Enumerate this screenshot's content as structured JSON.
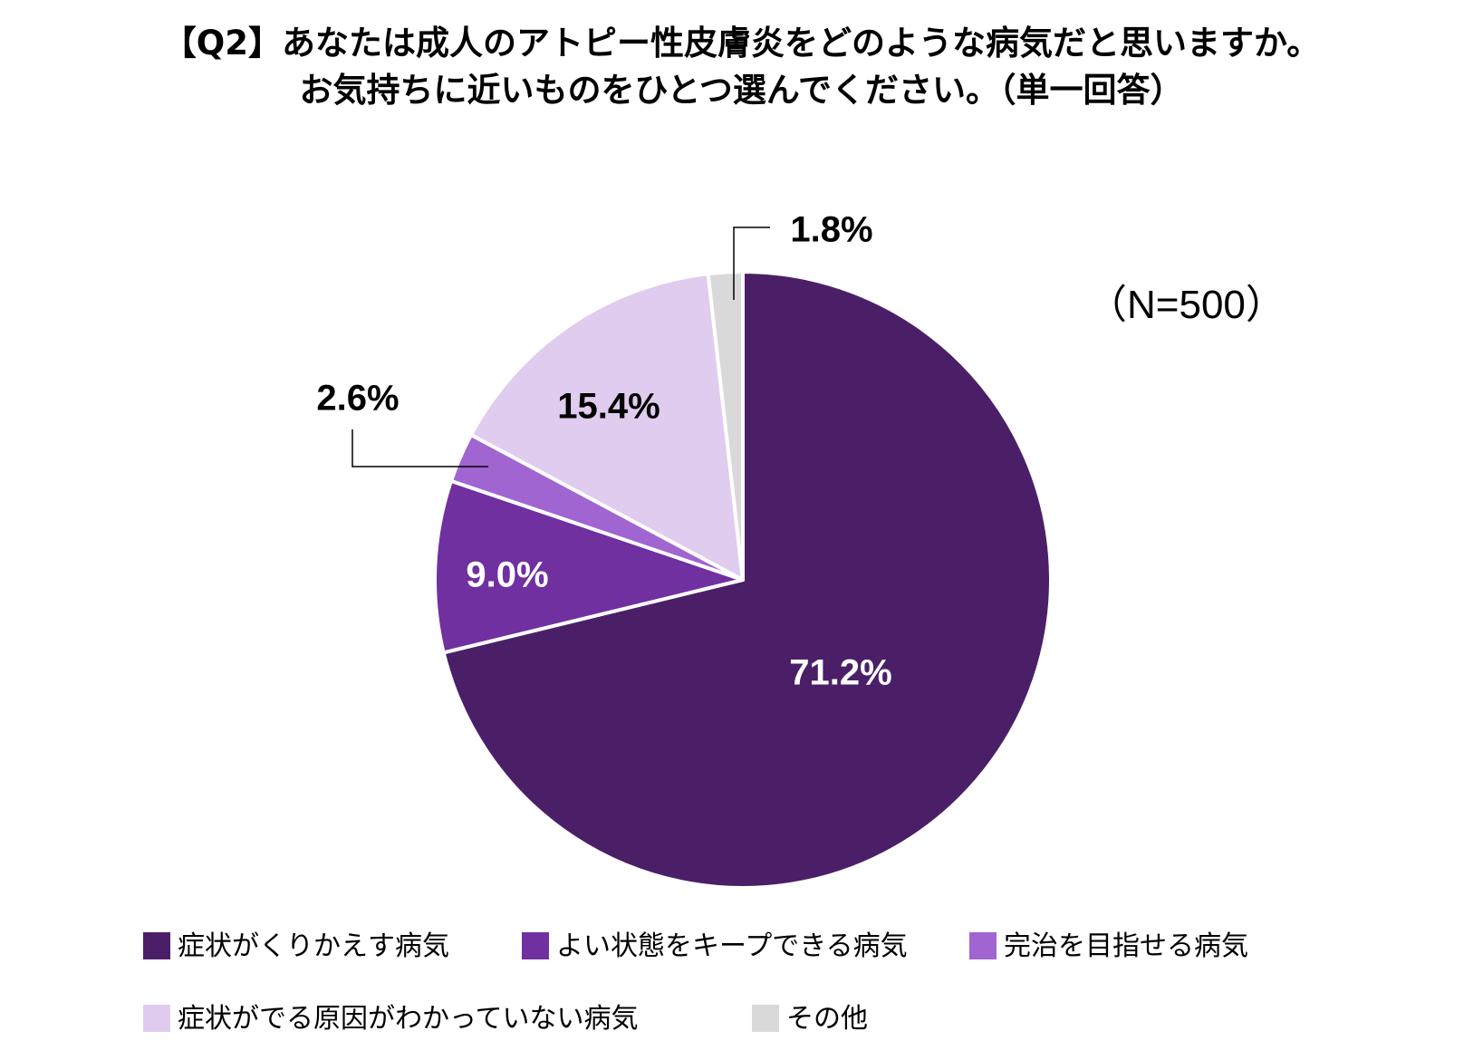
{
  "title": {
    "line1": "【Q2】あなたは成人のアトピー性皮膚炎をどのような病気だと思いますか。",
    "line2": "お気持ちに近いものをひとつ選んでください。（単一回答）"
  },
  "note": "（N=500）",
  "chart_data": {
    "type": "pie",
    "start_angle_deg": 0,
    "direction": "clockwise",
    "legend_position": "bottom",
    "slices": [
      {
        "label": "症状がくりかえす病気",
        "value": 71.2,
        "value_label": "71.2%",
        "color": "#4b1f68"
      },
      {
        "label": "よい状態をキープできる病気",
        "value": 9.0,
        "value_label": "9.0%",
        "color": "#7030a0"
      },
      {
        "label": "完治を目指せる病気",
        "value": 2.6,
        "value_label": "2.6%",
        "color": "#a165d1"
      },
      {
        "label": "症状がでる原因がわかっていない病気",
        "value": 15.4,
        "value_label": "15.4%",
        "color": "#e0ccee"
      },
      {
        "label": "その他",
        "value": 1.8,
        "value_label": "1.8%",
        "color": "#d9d9d9"
      }
    ]
  }
}
